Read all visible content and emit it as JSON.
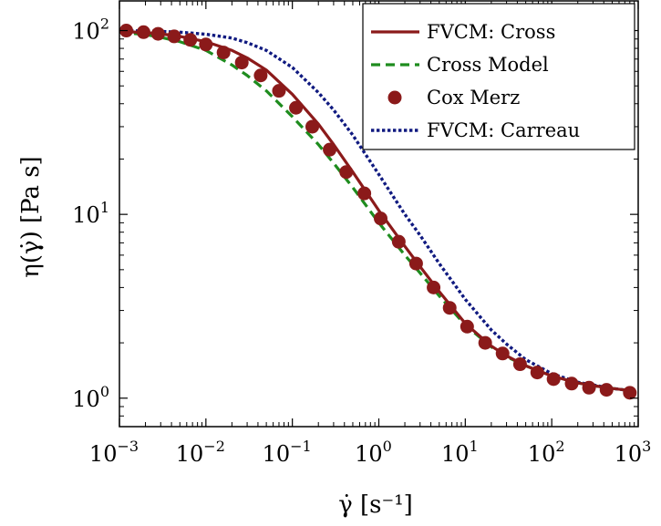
{
  "chart_data": {
    "type": "line",
    "xlabel": "γ̇ [s⁻¹]",
    "ylabel": "η(γ̇) [Pa s]",
    "x_scale": "log",
    "y_scale": "log",
    "xlim": [
      0.001,
      1000
    ],
    "ylim": [
      0.7,
      145
    ],
    "x_ticks": [
      {
        "value": 0.001,
        "base": "10",
        "exp": "−3"
      },
      {
        "value": 0.01,
        "base": "10",
        "exp": "−2"
      },
      {
        "value": 0.1,
        "base": "10",
        "exp": "−1"
      },
      {
        "value": 1,
        "base": "10",
        "exp": "0"
      },
      {
        "value": 10,
        "base": "10",
        "exp": "1"
      },
      {
        "value": 100,
        "base": "10",
        "exp": "2"
      },
      {
        "value": 1000,
        "base": "10",
        "exp": "3"
      }
    ],
    "y_ticks": [
      {
        "value": 1,
        "base": "10",
        "exp": "0"
      },
      {
        "value": 10,
        "base": "10",
        "exp": "1"
      },
      {
        "value": 100,
        "base": "10",
        "exp": "2"
      }
    ],
    "grid": false,
    "legend_position": "top-right",
    "series": [
      {
        "name": "FVCM: Cross",
        "style": "solid",
        "color": "#8b1a1a",
        "x": [
          0.001,
          0.002,
          0.003,
          0.005,
          0.01,
          0.02,
          0.03,
          0.05,
          0.1,
          0.2,
          0.3,
          0.5,
          1,
          2,
          3,
          5,
          10,
          20,
          30,
          50,
          100,
          200,
          300,
          500,
          800
        ],
        "y": [
          99,
          97.5,
          96,
          93,
          87,
          78,
          71,
          61,
          45,
          31,
          24,
          17,
          10.5,
          6.7,
          5.2,
          3.8,
          2.55,
          1.92,
          1.7,
          1.5,
          1.32,
          1.21,
          1.17,
          1.13,
          1.1
        ]
      },
      {
        "name": "Cross Model",
        "style": "dashed",
        "color": "#1e8c1e",
        "x": [
          0.001,
          0.002,
          0.003,
          0.005,
          0.01,
          0.02,
          0.03,
          0.05,
          0.1,
          0.2,
          0.3,
          0.5,
          1,
          2,
          3,
          5,
          10,
          20,
          30,
          50,
          100,
          200,
          300,
          500,
          800
        ],
        "y": [
          98,
          95,
          92,
          87,
          78,
          65,
          57,
          47,
          34,
          24,
          19,
          14,
          9.0,
          6.0,
          4.8,
          3.6,
          2.5,
          1.9,
          1.68,
          1.5,
          1.32,
          1.21,
          1.17,
          1.13,
          1.1
        ]
      },
      {
        "name": "Cox Merz",
        "style": "markers",
        "color": "#8b1a1a",
        "x": [
          0.0012,
          0.0019,
          0.0028,
          0.0043,
          0.0066,
          0.01,
          0.016,
          0.026,
          0.043,
          0.07,
          0.11,
          0.17,
          0.27,
          0.42,
          0.68,
          1.05,
          1.7,
          2.7,
          4.3,
          6.6,
          10.5,
          17,
          27,
          43,
          68,
          105,
          170,
          270,
          430,
          800
        ],
        "y": [
          100,
          98,
          96,
          93,
          89,
          84,
          76,
          67,
          57,
          47,
          38,
          30,
          22.5,
          17,
          13,
          9.5,
          7.1,
          5.4,
          4.0,
          3.1,
          2.45,
          2.0,
          1.75,
          1.53,
          1.38,
          1.27,
          1.2,
          1.14,
          1.11,
          1.07
        ]
      },
      {
        "name": "FVCM: Carreau",
        "style": "dotted",
        "color": "#101a80",
        "x": [
          0.001,
          0.002,
          0.003,
          0.005,
          0.01,
          0.02,
          0.03,
          0.05,
          0.1,
          0.2,
          0.3,
          0.5,
          1,
          2,
          3,
          5,
          10,
          20,
          30,
          50,
          100,
          200,
          300,
          500,
          800
        ],
        "y": [
          100,
          99.5,
          99,
          98,
          95.5,
          91,
          86,
          78,
          63,
          46,
          37,
          27,
          16.5,
          10,
          7.7,
          5.4,
          3.45,
          2.35,
          1.97,
          1.62,
          1.36,
          1.22,
          1.18,
          1.13,
          1.1
        ]
      }
    ]
  }
}
